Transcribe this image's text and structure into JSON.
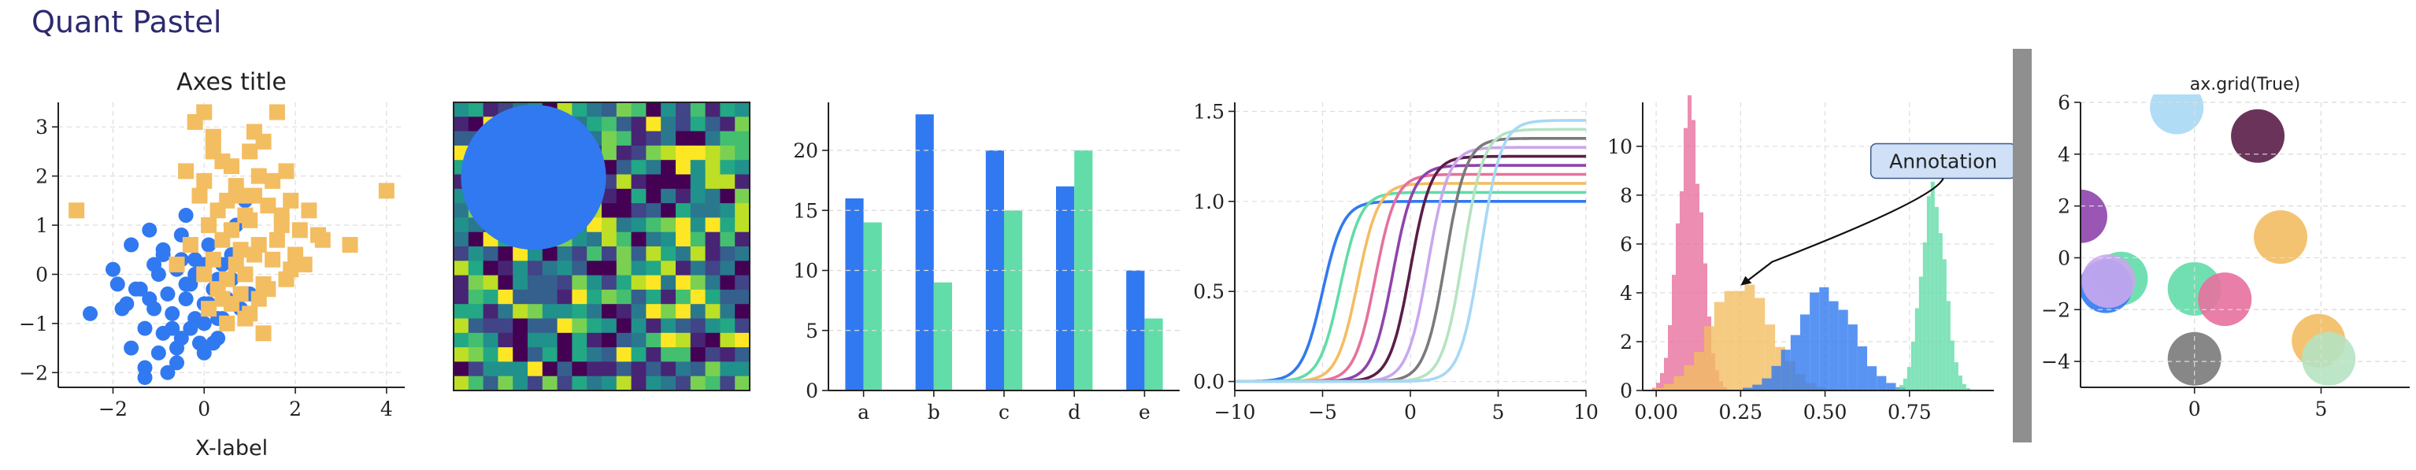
{
  "figure": {
    "title": "Quant Pastel",
    "colors": {
      "blue": "#3179f0",
      "orange": "#f3bd62",
      "green": "#62dca8",
      "pink": "#e7719e",
      "purple": "#8e44ad",
      "grey": "#7a7a7a",
      "divider": "#8f8f8f",
      "spine": "#222222",
      "grid": "#dddddd"
    }
  },
  "chart_data": [
    {
      "type": "scatter",
      "title": "Axes title",
      "xlabel": "X-label",
      "ylabel": "",
      "xlim": [
        -3.2,
        4.4
      ],
      "ylim": [
        -2.3,
        3.5
      ],
      "xticks": [
        -2,
        0,
        2,
        4
      ],
      "yticks": [
        -2,
        -1,
        0,
        1,
        2,
        3
      ],
      "grid": true,
      "series": [
        {
          "marker": "circle",
          "color": "#3179f0",
          "x": [
            -1.6,
            -1.2,
            -0.9,
            -0.5,
            -0.2,
            0.1,
            0.4,
            0.7,
            -1.0,
            -0.6,
            -0.3,
            0.0,
            0.3,
            -1.4,
            -0.8,
            -0.4,
            0.2,
            0.6,
            -1.1,
            -0.7,
            -0.2,
            0.1,
            0.5,
            -1.9,
            -1.3,
            -0.9,
            -0.5,
            0.0,
            0.4,
            0.8,
            -2.5,
            -1.6,
            -1.0,
            -0.6,
            -0.1,
            0.3,
            -1.3,
            -0.8,
            -0.3,
            0.2,
            -1.7,
            -1.2,
            -0.4,
            0.0,
            -0.9,
            -0.5,
            0.6,
            -2.0,
            -1.5,
            -1.1,
            -0.7,
            0.0,
            1.0,
            -0.6,
            -1.3,
            0.3,
            -0.2,
            -1.8,
            -0.4,
            0.9
          ],
          "y": [
            0.6,
            0.9,
            0.4,
            0.8,
            0.3,
            0.6,
            0.2,
            1.0,
            0.0,
            0.1,
            -0.2,
            0.2,
            -0.1,
            -0.3,
            -0.4,
            -0.5,
            -0.3,
            -0.1,
            -0.7,
            -0.8,
            -0.9,
            -0.6,
            -0.5,
            -0.2,
            -1.1,
            -1.2,
            -1.3,
            -1.0,
            -0.9,
            -0.7,
            -0.8,
            -1.5,
            -1.6,
            -1.8,
            -1.4,
            -1.3,
            -1.9,
            -2.0,
            -1.1,
            -1.4,
            -0.6,
            -0.5,
            -0.2,
            -0.6,
            0.5,
            0.3,
            0.4,
            0.1,
            -0.3,
            0.2,
            -1.1,
            -1.6,
            -0.4,
            -1.5,
            -2.1,
            -0.9,
            0.0,
            -0.7,
            1.2,
            1.5
          ]
        },
        {
          "marker": "square",
          "color": "#f3bd62",
          "x": [
            -2.8,
            -0.2,
            0.0,
            0.2,
            1.6,
            0.4,
            1.0,
            1.3,
            -0.4,
            0.6,
            1.2,
            1.8,
            0.0,
            0.7,
            1.5,
            -0.1,
            0.5,
            1.1,
            1.9,
            0.3,
            0.9,
            1.4,
            2.3,
            0.1,
            0.6,
            1.0,
            1.7,
            2.5,
            3.2,
            4.0,
            -0.3,
            0.4,
            0.8,
            1.2,
            1.6,
            2.0,
            0.2,
            0.7,
            1.1,
            1.5,
            1.9,
            0.0,
            0.5,
            0.9,
            1.3,
            1.8,
            2.2,
            0.3,
            0.8,
            1.2,
            0.6,
            1.0,
            1.4,
            0.1,
            0.5,
            0.9,
            1.3,
            2.6,
            -0.6,
            1.7,
            0.8,
            0.2,
            1.1,
            2.1,
            0.4
          ],
          "y": [
            1.3,
            3.1,
            3.3,
            2.8,
            3.3,
            2.3,
            2.5,
            2.7,
            2.1,
            2.2,
            2.0,
            2.1,
            1.9,
            1.8,
            1.9,
            1.6,
            1.5,
            1.6,
            1.5,
            1.3,
            1.2,
            1.4,
            1.3,
            1.0,
            0.9,
            1.1,
            1.0,
            0.8,
            0.6,
            1.7,
            0.6,
            0.7,
            0.5,
            0.6,
            0.7,
            0.4,
            0.3,
            0.2,
            0.4,
            0.3,
            0.1,
            0.0,
            -0.1,
            0.0,
            -0.2,
            -0.1,
            0.2,
            -0.3,
            -0.4,
            -0.5,
            -0.6,
            -0.8,
            -0.3,
            -0.7,
            -1.0,
            -0.9,
            -1.2,
            0.7,
            0.2,
            1.2,
            1.6,
            2.5,
            2.9,
            0.9,
            -0.5
          ]
        }
      ]
    },
    {
      "type": "heatmap",
      "rows": 20,
      "cols": 20,
      "colormap": "viridis",
      "overlay": {
        "shape": "circle",
        "color": "#3179f0"
      }
    },
    {
      "type": "bar",
      "categories": [
        "a",
        "b",
        "c",
        "d",
        "e"
      ],
      "ylim": [
        0,
        24
      ],
      "yticks": [
        0,
        5,
        10,
        15,
        20
      ],
      "grid": true,
      "series": [
        {
          "color": "#3179f0",
          "values": [
            16,
            23,
            20,
            17,
            10
          ]
        },
        {
          "color": "#62dca8",
          "values": [
            14,
            9,
            15,
            20,
            6
          ]
        }
      ]
    },
    {
      "type": "line",
      "xlim": [
        -10,
        10
      ],
      "ylim": [
        -0.05,
        1.55
      ],
      "xticks": [
        -10,
        -5,
        0,
        5,
        10
      ],
      "yticks": [
        0.0,
        0.5,
        1.0,
        1.5
      ],
      "grid": true,
      "series": [
        {
          "color": "#3179f0",
          "center": -5,
          "amplitude": 1.0
        },
        {
          "color": "#62dca8",
          "center": -4,
          "amplitude": 1.05
        },
        {
          "color": "#f3bd62",
          "center": -3,
          "amplitude": 1.1
        },
        {
          "color": "#e7719e",
          "center": -2,
          "amplitude": 1.15
        },
        {
          "color": "#8e44ad",
          "center": -1,
          "amplitude": 1.2
        },
        {
          "color": "#5a1e48",
          "center": 0,
          "amplitude": 1.25
        },
        {
          "color": "#c9a7ee",
          "center": 1,
          "amplitude": 1.3
        },
        {
          "color": "#7a7a7a",
          "center": 2,
          "amplitude": 1.35
        },
        {
          "color": "#b5e3c1",
          "center": 3,
          "amplitude": 1.4
        },
        {
          "color": "#a7d8f5",
          "center": 4,
          "amplitude": 1.45
        }
      ]
    },
    {
      "type": "area",
      "subtype": "histogram",
      "xlim": [
        -0.04,
        1.0
      ],
      "ylim": [
        0,
        11.8
      ],
      "xticks": [
        0.0,
        0.25,
        0.5,
        0.75
      ],
      "yticks": [
        0,
        2,
        4,
        6,
        8,
        10
      ],
      "grid": true,
      "annotation": {
        "text": "Annotation",
        "xy": [
          0.25,
          4.3
        ],
        "xytext": [
          0.85,
          9.4
        ]
      },
      "series": [
        {
          "color": "#e7719e",
          "mean": 0.1,
          "sd": 0.035,
          "peak": 11.2
        },
        {
          "color": "#f3bd62",
          "mean": 0.25,
          "sd": 0.09,
          "peak": 4.3
        },
        {
          "color": "#3179f0",
          "mean": 0.5,
          "sd": 0.085,
          "peak": 4.0
        },
        {
          "color": "#62dca8",
          "mean": 0.82,
          "sd": 0.035,
          "peak": 8.0
        }
      ]
    },
    {
      "type": "scatter",
      "subtype": "bubbles",
      "title": "ax.grid(True)",
      "xlim": [
        -4.5,
        8.5
      ],
      "ylim": [
        -5.0,
        6.0
      ],
      "xticks": [
        0,
        5
      ],
      "yticks": [
        -4,
        -2,
        0,
        2,
        4,
        6
      ],
      "grid": true,
      "points": [
        {
          "x": -0.7,
          "y": 5.8,
          "color": "#a7d8f5"
        },
        {
          "x": 2.5,
          "y": 4.7,
          "color": "#5a1e48"
        },
        {
          "x": -4.5,
          "y": 1.6,
          "color": "#8e44ad"
        },
        {
          "x": 3.4,
          "y": 0.8,
          "color": "#f3bd62"
        },
        {
          "x": -2.9,
          "y": -0.8,
          "color": "#62dca8"
        },
        {
          "x": -3.5,
          "y": -1.1,
          "color": "#3179f0"
        },
        {
          "x": -3.4,
          "y": -0.9,
          "color": "#c9a7ee"
        },
        {
          "x": 0.0,
          "y": -1.2,
          "color": "#62dca8"
        },
        {
          "x": 1.2,
          "y": -1.6,
          "color": "#e7719e"
        },
        {
          "x": 4.9,
          "y": -3.2,
          "color": "#f3bd62"
        },
        {
          "x": 5.3,
          "y": -3.9,
          "color": "#b5e3c1"
        },
        {
          "x": 0.0,
          "y": -3.9,
          "color": "#7a7a7a"
        }
      ]
    }
  ]
}
